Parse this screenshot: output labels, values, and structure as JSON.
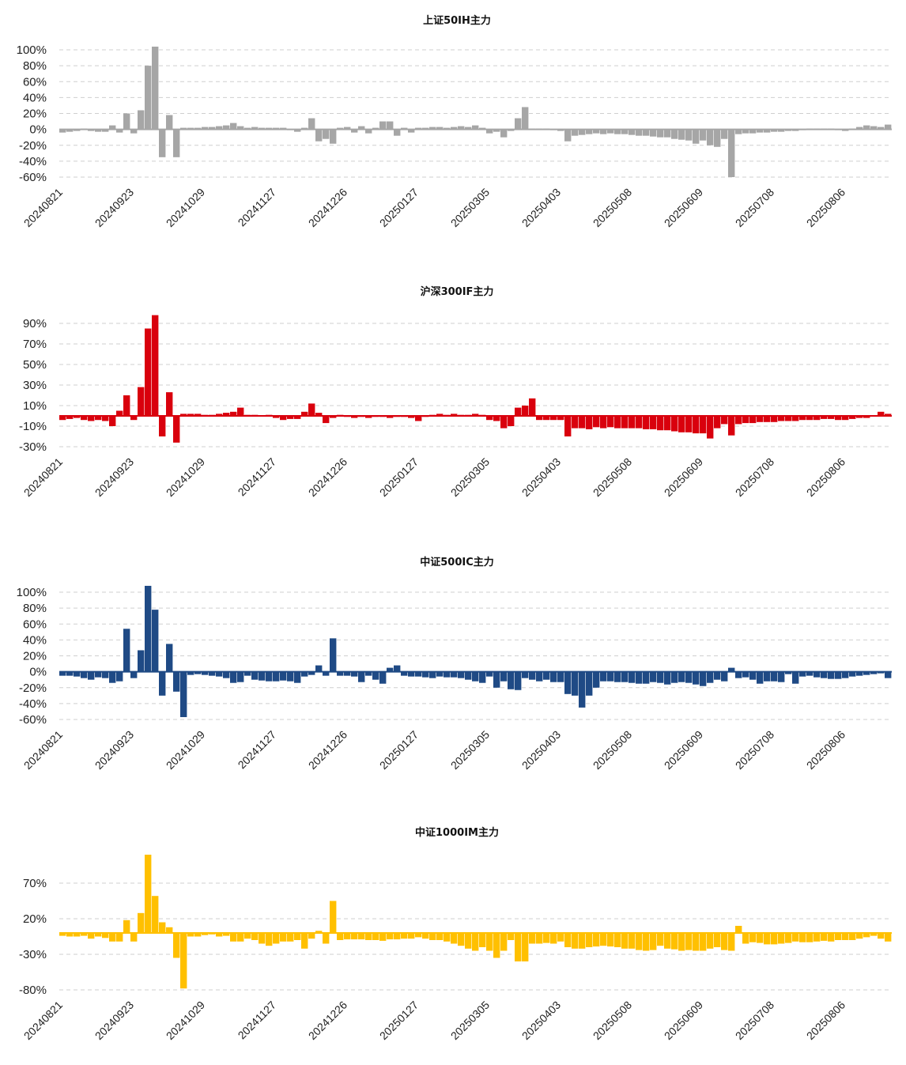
{
  "x_tick_labels": [
    "20240821",
    "20240923",
    "20241029",
    "20241127",
    "20241226",
    "20250127",
    "20250305",
    "20250403",
    "20250508",
    "20250609",
    "20250708",
    "20250806"
  ],
  "chart_data": [
    {
      "type": "bar",
      "title": "上证50IH主力",
      "color": "#a6a6a6",
      "ylim": [
        -60,
        100
      ],
      "yticks": [
        100,
        80,
        60,
        40,
        20,
        0,
        -20,
        -40,
        -60
      ],
      "ytick_labels": [
        "100%",
        "80%",
        "60%",
        "40%",
        "20%",
        "0%",
        "-20%",
        "-40%",
        "-60%"
      ],
      "grid": true,
      "values": [
        -4,
        -3,
        -2,
        1,
        -2,
        -3,
        -3,
        5,
        -4,
        20,
        -5,
        24,
        80,
        104,
        -35,
        18,
        -35,
        2,
        2,
        2,
        3,
        3,
        4,
        5,
        8,
        4,
        2,
        3,
        2,
        2,
        2,
        2,
        -1,
        -3,
        2,
        14,
        -15,
        -12,
        -18,
        2,
        3,
        -4,
        4,
        -5,
        2,
        10,
        10,
        -8,
        2,
        -4,
        2,
        2,
        3,
        3,
        2,
        3,
        4,
        3,
        5,
        2,
        -5,
        -3,
        -10,
        -2,
        14,
        28,
        1,
        1,
        1,
        0,
        -2,
        -15,
        -8,
        -7,
        -6,
        -5,
        -6,
        -5,
        -6,
        -6,
        -7,
        -8,
        -8,
        -9,
        -10,
        -10,
        -12,
        -13,
        -14,
        -18,
        -14,
        -20,
        -22,
        -12,
        -60,
        -6,
        -5,
        -5,
        -4,
        -4,
        -3,
        -3,
        -2,
        -2,
        -1,
        1,
        1,
        1,
        1,
        0,
        -2,
        1,
        3,
        5,
        4,
        3,
        6
      ]
    },
    {
      "type": "bar",
      "title": "沪深300IF主力",
      "color": "#d9000d",
      "ylim": [
        -30,
        90
      ],
      "yticks": [
        90,
        70,
        50,
        30,
        10,
        -10,
        -30
      ],
      "ytick_labels": [
        "90%",
        "70%",
        "50%",
        "30%",
        "10%",
        "-10%",
        "-30%"
      ],
      "grid": true,
      "values": [
        -4,
        -3,
        -2,
        -4,
        -5,
        -4,
        -5,
        -10,
        5,
        20,
        -4,
        28,
        85,
        98,
        -20,
        23,
        -26,
        2,
        2,
        2,
        1,
        1,
        2,
        3,
        4,
        8,
        1,
        1,
        0,
        1,
        -2,
        -4,
        -3,
        -3,
        4,
        12,
        3,
        -7,
        -2,
        1,
        -1,
        -2,
        -1,
        -2,
        -1,
        -1,
        -2,
        -1,
        -1,
        -2,
        -5,
        -1,
        1,
        2,
        1,
        2,
        1,
        1,
        2,
        1,
        -4,
        -5,
        -12,
        -10,
        8,
        10,
        17,
        -4,
        -4,
        -4,
        -4,
        -20,
        -12,
        -12,
        -13,
        -11,
        -12,
        -11,
        -12,
        -12,
        -12,
        -12,
        -13,
        -13,
        -14,
        -14,
        -15,
        -16,
        -16,
        -17,
        -17,
        -22,
        -12,
        -8,
        -19,
        -8,
        -7,
        -7,
        -6,
        -6,
        -6,
        -5,
        -5,
        -5,
        -4,
        -4,
        -4,
        -3,
        -3,
        -4,
        -4,
        -3,
        -2,
        -2,
        0,
        4,
        2
      ]
    },
    {
      "type": "bar",
      "title": "中证500IC主力",
      "color": "#1f4a85",
      "ylim": [
        -60,
        100
      ],
      "yticks": [
        100,
        80,
        60,
        40,
        20,
        0,
        -20,
        -40,
        -60
      ],
      "ytick_labels": [
        "100%",
        "80%",
        "60%",
        "40%",
        "20%",
        "0%",
        "-20%",
        "-40%",
        "-60%"
      ],
      "grid": true,
      "values": [
        -5,
        -5,
        -6,
        -8,
        -10,
        -7,
        -8,
        -14,
        -12,
        54,
        -8,
        27,
        108,
        78,
        -30,
        35,
        -25,
        -57,
        -4,
        -3,
        -4,
        -5,
        -6,
        -8,
        -14,
        -13,
        -5,
        -10,
        -11,
        -12,
        -12,
        -11,
        -12,
        -14,
        -6,
        -4,
        8,
        -5,
        42,
        -5,
        -5,
        -6,
        -13,
        -5,
        -10,
        -15,
        5,
        8,
        -5,
        -6,
        -6,
        -7,
        -8,
        -6,
        -7,
        -7,
        -8,
        -10,
        -12,
        -14,
        -6,
        -20,
        -12,
        -22,
        -23,
        -8,
        -10,
        -12,
        -10,
        -13,
        -13,
        -28,
        -30,
        -45,
        -30,
        -20,
        -12,
        -12,
        -13,
        -13,
        -14,
        -15,
        -15,
        -13,
        -14,
        -16,
        -14,
        -13,
        -14,
        -16,
        -18,
        -14,
        -10,
        -12,
        5,
        -8,
        -7,
        -10,
        -15,
        -12,
        -12,
        -13,
        -3,
        -15,
        -6,
        -5,
        -7,
        -8,
        -9,
        -9,
        -8,
        -6,
        -5,
        -4,
        -3,
        -2,
        -8
      ]
    },
    {
      "type": "bar",
      "title": "中证1000IM主力",
      "color": "#ffc000",
      "ylim": [
        -80,
        120
      ],
      "yticks": [
        70,
        20,
        -30,
        -80
      ],
      "ytick_labels": [
        "70%",
        "20%",
        "-30%",
        "-80%"
      ],
      "grid": true,
      "values": [
        -4,
        -5,
        -5,
        -4,
        -8,
        -5,
        -7,
        -12,
        -12,
        18,
        -12,
        28,
        110,
        52,
        15,
        8,
        -35,
        -78,
        -5,
        -5,
        -3,
        -2,
        -5,
        -4,
        -12,
        -12,
        -8,
        -10,
        -15,
        -18,
        -15,
        -12,
        -12,
        -10,
        -22,
        -8,
        3,
        -15,
        45,
        -10,
        -9,
        -9,
        -9,
        -10,
        -10,
        -11,
        -9,
        -9,
        -8,
        -8,
        -6,
        -8,
        -10,
        -10,
        -12,
        -15,
        -18,
        -22,
        -25,
        -20,
        -25,
        -35,
        -25,
        -10,
        -40,
        -40,
        -15,
        -15,
        -14,
        -15,
        -12,
        -20,
        -22,
        -22,
        -20,
        -19,
        -18,
        -19,
        -20,
        -22,
        -22,
        -24,
        -25,
        -24,
        -18,
        -22,
        -23,
        -25,
        -24,
        -25,
        -25,
        -22,
        -20,
        -24,
        -25,
        10,
        -15,
        -13,
        -14,
        -16,
        -16,
        -15,
        -14,
        -12,
        -13,
        -13,
        -12,
        -11,
        -12,
        -10,
        -10,
        -10,
        -8,
        -6,
        -4,
        -8,
        -12
      ]
    }
  ]
}
